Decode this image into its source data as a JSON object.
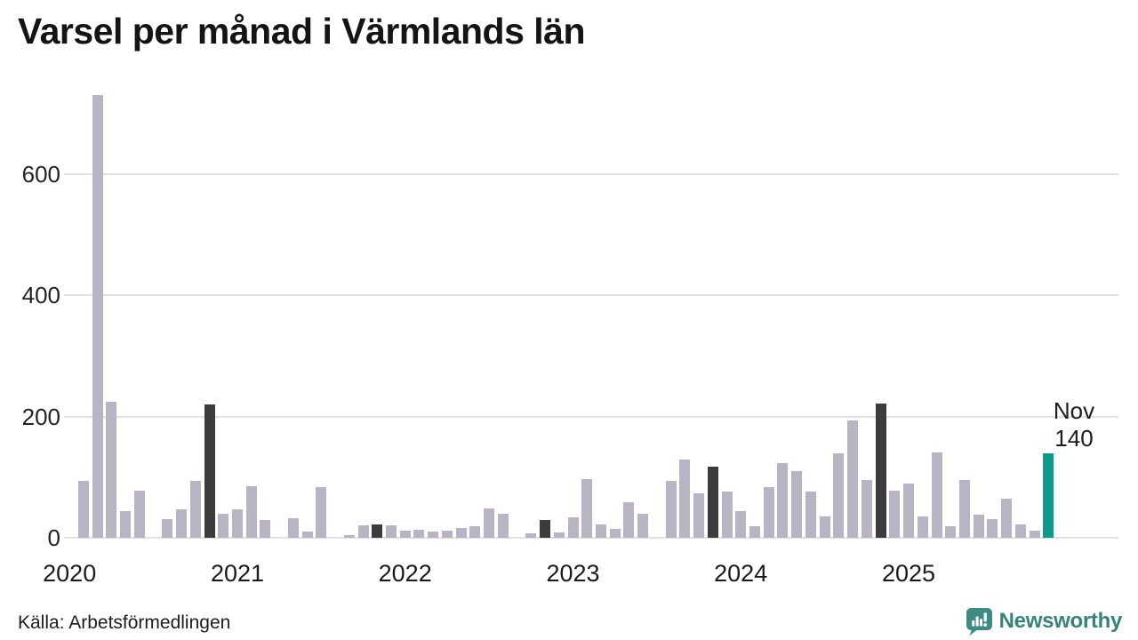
{
  "title": "Varsel per månad i Värmlands län",
  "source": "Källa: Arbetsförmedlingen",
  "brand": {
    "name": "Newsworthy",
    "icon": "newsworthy-speech-bubble-bar-chart-icon"
  },
  "annotation": {
    "line1": "Nov",
    "line2": "140"
  },
  "colors": {
    "background": "#ffffff",
    "bar_base": "#b8b4c3",
    "bar_dark": "#3c3c3c",
    "bar_teal": "#0d9a8c",
    "gridline": "#e1e0e5",
    "title_text": "#141414",
    "axis_text": "#222222",
    "annotation_text": "#1c1c1c",
    "brand_teal": "#35837b",
    "brand_icon_teal": "#3d8c83"
  },
  "chart_data": {
    "type": "bar",
    "title": "Varsel per månad i Värmlands län",
    "xlabel": "",
    "ylabel": "",
    "grid": "horizontal",
    "legend": "none",
    "ylim": [
      0,
      740
    ],
    "yticks": [
      0,
      200,
      400,
      600
    ],
    "xtick_years": [
      "2020",
      "2021",
      "2022",
      "2023",
      "2024",
      "2025"
    ],
    "x": [
      "2020-01",
      "2020-02",
      "2020-03",
      "2020-04",
      "2020-05",
      "2020-06",
      "2020-07",
      "2020-08",
      "2020-09",
      "2020-10",
      "2020-11",
      "2020-12",
      "2021-01",
      "2021-02",
      "2021-03",
      "2021-04",
      "2021-05",
      "2021-06",
      "2021-07",
      "2021-08",
      "2021-09",
      "2021-10",
      "2021-11",
      "2021-12",
      "2022-01",
      "2022-02",
      "2022-03",
      "2022-04",
      "2022-05",
      "2022-06",
      "2022-07",
      "2022-08",
      "2022-09",
      "2022-10",
      "2022-11",
      "2022-12",
      "2023-01",
      "2023-02",
      "2023-03",
      "2023-04",
      "2023-05",
      "2023-06",
      "2023-07",
      "2023-08",
      "2023-09",
      "2023-10",
      "2023-11",
      "2023-12",
      "2024-01",
      "2024-02",
      "2024-03",
      "2024-04",
      "2024-05",
      "2024-06",
      "2024-07",
      "2024-08",
      "2024-09",
      "2024-10",
      "2024-11",
      "2024-12",
      "2025-01",
      "2025-02",
      "2025-03",
      "2025-04",
      "2025-05",
      "2025-06",
      "2025-07",
      "2025-08",
      "2025-09",
      "2025-10",
      "2025-11"
    ],
    "values": [
      0,
      94,
      730,
      225,
      44,
      78,
      0,
      31,
      47,
      94,
      220,
      40,
      47,
      85,
      30,
      0,
      33,
      10,
      83,
      0,
      5,
      21,
      22,
      20,
      12,
      13,
      11,
      12,
      16,
      19,
      48,
      40,
      0,
      7,
      29,
      9,
      34,
      97,
      22,
      15,
      59,
      40,
      0,
      94,
      129,
      74,
      118,
      76,
      44,
      19,
      83,
      123,
      110,
      77,
      35,
      140,
      193,
      96,
      222,
      78,
      90,
      35,
      141,
      19,
      96,
      38,
      31,
      65,
      22,
      12,
      140
    ],
    "highlight_dark_months": [
      "2020-11",
      "2021-11",
      "2022-11",
      "2023-11",
      "2024-11"
    ],
    "highlight_teal_month": "2025-11",
    "annotation": {
      "month": "2025-11",
      "label": "Nov",
      "value_label": "140"
    }
  }
}
